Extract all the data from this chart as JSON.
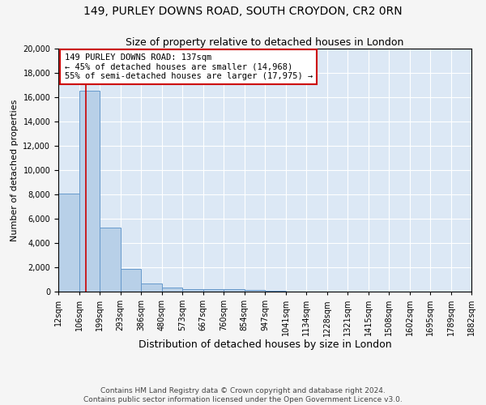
{
  "title1": "149, PURLEY DOWNS ROAD, SOUTH CROYDON, CR2 0RN",
  "title2": "Size of property relative to detached houses in London",
  "xlabel": "Distribution of detached houses by size in London",
  "ylabel": "Number of detached properties",
  "bin_edges": [
    12,
    106,
    199,
    293,
    386,
    480,
    573,
    667,
    760,
    854,
    947,
    1041,
    1134,
    1228,
    1321,
    1415,
    1508,
    1602,
    1695,
    1789,
    1882
  ],
  "bar_heights": [
    8100,
    16500,
    5300,
    1850,
    700,
    320,
    230,
    200,
    180,
    130,
    50,
    30,
    20,
    15,
    10,
    8,
    6,
    5,
    4,
    3
  ],
  "bar_color": "#b8d0e8",
  "bar_edge_color": "#6699cc",
  "background_color": "#dce8f5",
  "grid_color": "#ffffff",
  "property_size": 137,
  "red_line_color": "#cc0000",
  "annotation_line1": "149 PURLEY DOWNS ROAD: 137sqm",
  "annotation_line2": "← 45% of detached houses are smaller (14,968)",
  "annotation_line3": "55% of semi-detached houses are larger (17,975) →",
  "annotation_box_color": "#ffffff",
  "annotation_box_edge": "#cc0000",
  "ylim": [
    0,
    20000
  ],
  "yticks": [
    0,
    2000,
    4000,
    6000,
    8000,
    10000,
    12000,
    14000,
    16000,
    18000,
    20000
  ],
  "footer1": "Contains HM Land Registry data © Crown copyright and database right 2024.",
  "footer2": "Contains public sector information licensed under the Open Government Licence v3.0.",
  "title1_fontsize": 10,
  "title2_fontsize": 9,
  "xlabel_fontsize": 9,
  "ylabel_fontsize": 8,
  "tick_fontsize": 7,
  "annotation_fontsize": 7.5,
  "footer_fontsize": 6.5
}
